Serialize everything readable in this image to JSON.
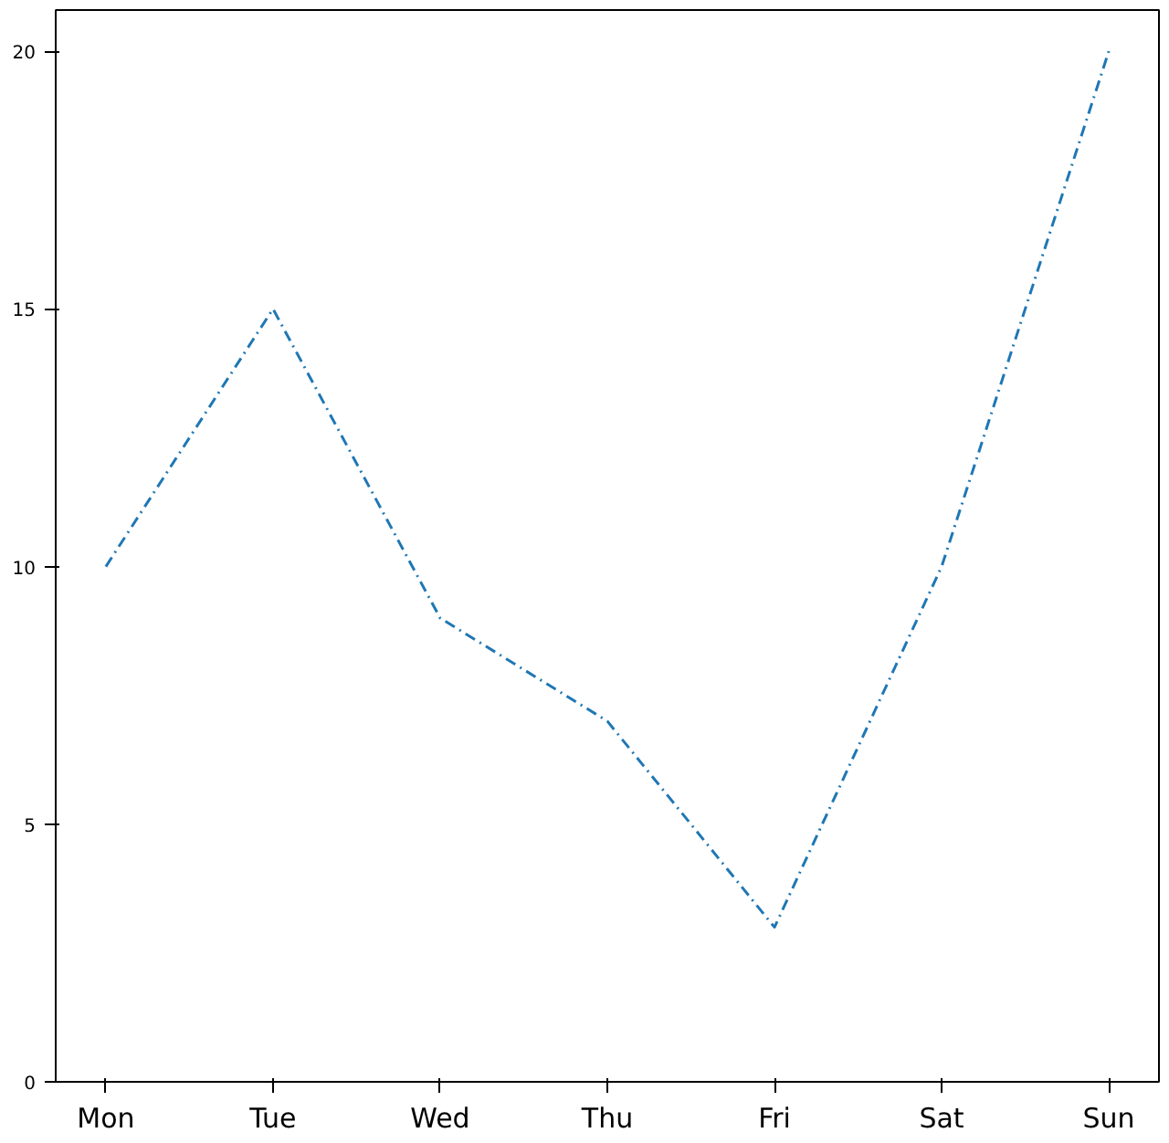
{
  "chart_data": {
    "type": "line",
    "categories": [
      "Mon",
      "Tue",
      "Wed",
      "Thu",
      "Fri",
      "Sat",
      "Sun"
    ],
    "series": [
      {
        "color": "#1f77b4",
        "values": [
          10,
          15,
          9,
          7,
          3,
          10,
          20
        ]
      }
    ],
    "ylim": [
      0,
      20.8
    ],
    "yticks": [
      0,
      5,
      10,
      15,
      20
    ],
    "grid": false,
    "marker": "none",
    "line_style": "dashed"
  }
}
